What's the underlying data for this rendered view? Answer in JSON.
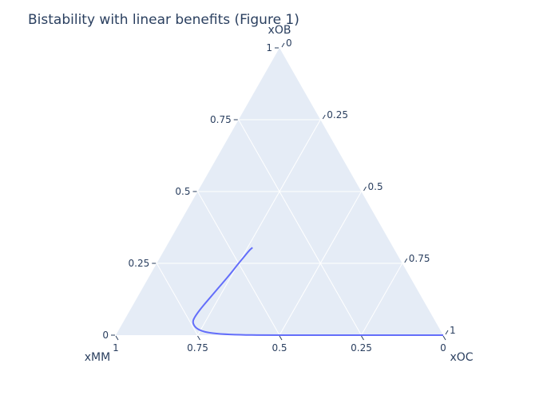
{
  "chart_data": {
    "type": "ternary",
    "title": "Bistability with linear benefits (Figure 1)",
    "axes": {
      "a": {
        "title": "xOB",
        "ticks": [
          0,
          0.25,
          0.5,
          0.75,
          1
        ]
      },
      "b": {
        "title": "xMM",
        "ticks": [
          0,
          0.25,
          0.5,
          0.75,
          1
        ]
      },
      "c": {
        "title": "xOC",
        "ticks": [
          0,
          0.25,
          0.5,
          0.75,
          1
        ]
      }
    },
    "tick_labels": {
      "0": "0",
      "0.25": "0.25",
      "0.5": "0.5",
      "0.75": "0.75",
      "1": "1"
    },
    "grid": true,
    "plot_bgcolor": "#e5ecf6",
    "series": [
      {
        "color": "#636efa",
        "points": [
          {
            "a": 0.0,
            "b": 0.0,
            "c": 1.0
          },
          {
            "a": 0.0,
            "b": 0.3,
            "c": 0.7
          },
          {
            "a": 0.0,
            "b": 0.55,
            "c": 0.45
          },
          {
            "a": 0.001,
            "b": 0.62,
            "c": 0.379
          },
          {
            "a": 0.004,
            "b": 0.68,
            "c": 0.316
          },
          {
            "a": 0.01,
            "b": 0.72,
            "c": 0.27
          },
          {
            "a": 0.02,
            "b": 0.74,
            "c": 0.24
          },
          {
            "a": 0.035,
            "b": 0.745,
            "c": 0.22
          },
          {
            "a": 0.05,
            "b": 0.74,
            "c": 0.21
          },
          {
            "a": 0.07,
            "b": 0.72,
            "c": 0.21
          },
          {
            "a": 0.1,
            "b": 0.685,
            "c": 0.215
          },
          {
            "a": 0.14,
            "b": 0.635,
            "c": 0.225
          },
          {
            "a": 0.18,
            "b": 0.585,
            "c": 0.235
          },
          {
            "a": 0.22,
            "b": 0.535,
            "c": 0.245
          },
          {
            "a": 0.25,
            "b": 0.5,
            "c": 0.25
          },
          {
            "a": 0.27,
            "b": 0.475,
            "c": 0.255
          },
          {
            "a": 0.295,
            "b": 0.445,
            "c": 0.26
          },
          {
            "a": 0.305,
            "b": 0.43,
            "c": 0.265
          }
        ]
      }
    ]
  }
}
